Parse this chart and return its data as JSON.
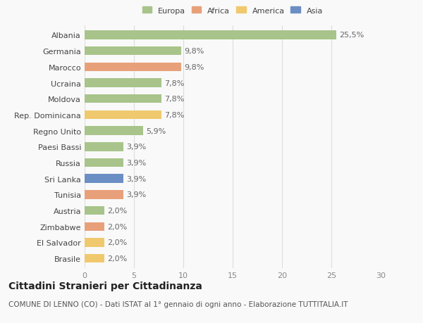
{
  "categories": [
    "Brasile",
    "El Salvador",
    "Zimbabwe",
    "Austria",
    "Tunisia",
    "Sri Lanka",
    "Russia",
    "Paesi Bassi",
    "Regno Unito",
    "Rep. Dominicana",
    "Moldova",
    "Ucraina",
    "Marocco",
    "Germania",
    "Albania"
  ],
  "values": [
    2.0,
    2.0,
    2.0,
    2.0,
    3.9,
    3.9,
    3.9,
    3.9,
    5.9,
    7.8,
    7.8,
    7.8,
    9.8,
    9.8,
    25.5
  ],
  "labels": [
    "2,0%",
    "2,0%",
    "2,0%",
    "2,0%",
    "3,9%",
    "3,9%",
    "3,9%",
    "3,9%",
    "5,9%",
    "7,8%",
    "7,8%",
    "7,8%",
    "9,8%",
    "9,8%",
    "25,5%"
  ],
  "colors": [
    "#f0c96e",
    "#f0c96e",
    "#e8a07a",
    "#a8c48a",
    "#e8a07a",
    "#6b8fc4",
    "#a8c48a",
    "#a8c48a",
    "#a8c48a",
    "#f0c96e",
    "#a8c48a",
    "#a8c48a",
    "#e8a07a",
    "#a8c48a",
    "#a8c48a"
  ],
  "legend_labels": [
    "Europa",
    "Africa",
    "America",
    "Asia"
  ],
  "legend_colors": [
    "#a8c48a",
    "#e8a07a",
    "#f0c96e",
    "#6b8fc4"
  ],
  "xlim": [
    0,
    30
  ],
  "xticks": [
    0,
    5,
    10,
    15,
    20,
    25,
    30
  ],
  "title": "Cittadini Stranieri per Cittadinanza",
  "subtitle": "COMUNE DI LENNO (CO) - Dati ISTAT al 1° gennaio di ogni anno - Elaborazione TUTTITALIA.IT",
  "background_color": "#f9f9f9",
  "bar_height": 0.55,
  "grid_color": "#dddddd",
  "label_fontsize": 8,
  "tick_fontsize": 8,
  "title_fontsize": 10,
  "subtitle_fontsize": 7.5
}
